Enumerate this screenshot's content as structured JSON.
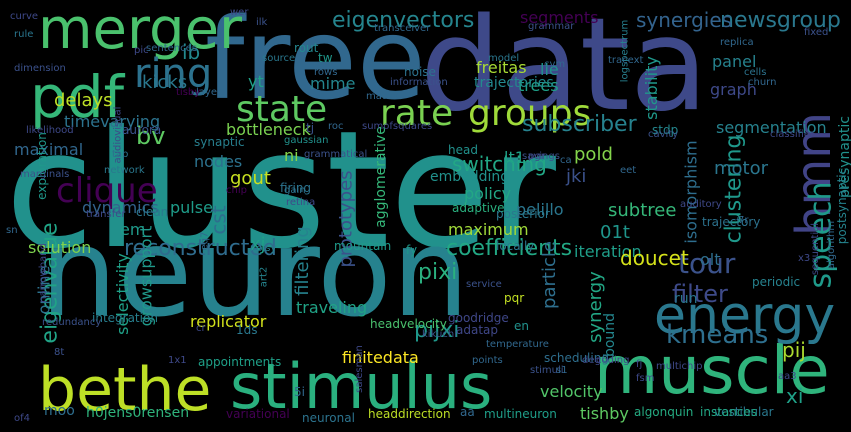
{
  "words": [
    {
      "text": "cluster",
      "color": "#21918c"
    },
    {
      "text": "neuron",
      "color": "#26828e"
    },
    {
      "text": "data",
      "color": "#3e4989"
    },
    {
      "text": "free",
      "color": "#31688e"
    },
    {
      "text": "stimulus",
      "color": "#2ab07f"
    },
    {
      "text": "bethe",
      "color": "#bddf26"
    },
    {
      "text": "muscle",
      "color": "#2fb47c"
    },
    {
      "text": "pdf",
      "color": "#35b779"
    },
    {
      "text": "merger",
      "color": "#4ac16d"
    },
    {
      "text": "energy",
      "color": "#2a788e"
    },
    {
      "text": "hmm",
      "color": "#414487"
    },
    {
      "text": "ring",
      "color": "#2c728e"
    },
    {
      "text": "state",
      "color": "#5ec962"
    },
    {
      "text": "rate",
      "color": "#7ad151"
    },
    {
      "text": "groups",
      "color": "#9fda3a"
    },
    {
      "text": "clique",
      "color": "#440154"
    },
    {
      "text": "speech",
      "color": "#1f9a8a"
    },
    {
      "text": "eigenvectors",
      "color": "#25858e"
    },
    {
      "text": "newsgroup",
      "color": "#2a788e"
    },
    {
      "text": "synergies",
      "color": "#33638d"
    },
    {
      "text": "subscriber",
      "color": "#26828e"
    },
    {
      "text": "clustering",
      "color": "#1f988b"
    },
    {
      "text": "tour",
      "color": "#3b528b"
    },
    {
      "text": "kmeans",
      "color": "#2e6f8e"
    },
    {
      "text": "filter",
      "color": "#3e4a89"
    },
    {
      "text": "eigenvalue",
      "color": "#20a386"
    },
    {
      "text": "reconstructed",
      "color": "#2f6c8e"
    },
    {
      "text": "switching",
      "color": "#22a785"
    },
    {
      "text": "coefficients",
      "color": "#22a884"
    },
    {
      "text": "segments",
      "color": "#440154"
    },
    {
      "text": "ib",
      "color": "#23898e"
    },
    {
      "text": "freitas",
      "color": "#a8db34"
    },
    {
      "text": "delays",
      "color": "#bddf26"
    },
    {
      "text": "kicks",
      "color": "#2a788e"
    },
    {
      "text": "yt",
      "color": "#1fa188"
    },
    {
      "text": "mime",
      "color": "#24868e"
    },
    {
      "text": "timevarying",
      "color": "#2c738e"
    },
    {
      "text": "maximal",
      "color": "#31678e"
    },
    {
      "text": "bv",
      "color": "#5ec962"
    },
    {
      "text": "bottleneck",
      "color": "#7ad151"
    },
    {
      "text": "ni",
      "color": "#86d549"
    },
    {
      "text": "nodes",
      "color": "#2c728e"
    },
    {
      "text": "gout",
      "color": "#c8e020"
    },
    {
      "text": "cst",
      "color": "#2e6e8e"
    },
    {
      "text": "lt1",
      "color": "#1fa187"
    },
    {
      "text": "pold",
      "color": "#84d44b"
    },
    {
      "text": "jki",
      "color": "#3b518b"
    },
    {
      "text": "motor",
      "color": "#2a768e"
    },
    {
      "text": "segmentation",
      "color": "#26828e"
    },
    {
      "text": "graph",
      "color": "#3e4989"
    },
    {
      "text": "stability",
      "color": "#1f988b"
    },
    {
      "text": "trees",
      "color": "#1fa088"
    },
    {
      "text": "lle",
      "color": "#21918c"
    },
    {
      "text": "trajectories",
      "color": "#23898e"
    },
    {
      "text": "dynamics",
      "color": "#33638d"
    },
    {
      "text": "pulse",
      "color": "#1e9c89"
    },
    {
      "text": "solution",
      "color": "#7fd34e"
    },
    {
      "text": "em",
      "color": "#1f9a8a"
    },
    {
      "text": "xj",
      "color": "#1fa188"
    },
    {
      "text": "maximum",
      "color": "#a0da39"
    },
    {
      "text": "pelillo",
      "color": "#2a768e"
    },
    {
      "text": "policy",
      "color": "#22a785"
    },
    {
      "text": "subtree",
      "color": "#35b779"
    },
    {
      "text": "isomorphism",
      "color": "#2e6e8e"
    },
    {
      "text": "01t",
      "color": "#1f958b"
    },
    {
      "text": "iteration",
      "color": "#1f9e89"
    },
    {
      "text": "prototypes",
      "color": "#3b528b"
    },
    {
      "text": "filtering",
      "color": "#26828e"
    },
    {
      "text": "pixi",
      "color": "#2ab07f"
    },
    {
      "text": "pijxi",
      "color": "#1f988b"
    },
    {
      "text": "particle",
      "color": "#2e6f8e"
    },
    {
      "text": "doucet",
      "color": "#d5e21a"
    },
    {
      "text": "olt",
      "color": "#2e6e8e"
    },
    {
      "text": "synergy",
      "color": "#22a785"
    },
    {
      "text": "replicator",
      "color": "#d2e21b"
    },
    {
      "text": "growsupport",
      "color": "#1f998a"
    },
    {
      "text": "selectivity",
      "color": "#1fa188"
    },
    {
      "text": "online",
      "color": "#2c728e"
    },
    {
      "text": "pij",
      "color": "#addc30"
    },
    {
      "text": "xi",
      "color": "#1fa188"
    },
    {
      "text": "velocity",
      "color": "#52c569"
    },
    {
      "text": "tishby",
      "color": "#5ec962"
    },
    {
      "text": "moo",
      "color": "#2e6e8e"
    },
    {
      "text": "h0jens0rensen",
      "color": "#2fb47c"
    },
    {
      "text": "finitedata",
      "color": "#fde725"
    },
    {
      "text": "appointments",
      "color": "#1fa088"
    },
    {
      "text": "run",
      "color": "#2a768e"
    },
    {
      "text": "bound",
      "color": "#24868e"
    },
    {
      "text": "traveling",
      "color": "#20a386"
    },
    {
      "text": "integration",
      "color": "#277f8e"
    },
    {
      "text": "scheduling",
      "color": "#2e6e8e"
    },
    {
      "text": "headdirection",
      "color": "#bddf26"
    },
    {
      "text": "neuronal",
      "color": "#2c738e"
    },
    {
      "text": "multineuron",
      "color": "#1f9e89"
    },
    {
      "text": "algonquin",
      "color": "#25ab82"
    },
    {
      "text": "vestibular",
      "color": "#2a788e"
    },
    {
      "text": "instances",
      "color": "#22a785"
    },
    {
      "text": "1ds",
      "color": "#2a788e"
    },
    {
      "text": "pqr",
      "color": "#c2df23"
    },
    {
      "text": "en",
      "color": "#21918c"
    },
    {
      "text": "goodridge",
      "color": "#3f4788"
    },
    {
      "text": "adatap",
      "color": "#3f4788"
    },
    {
      "text": "headvelocity",
      "color": "#4ac16d"
    },
    {
      "text": "mountain",
      "color": "#1f9a8a"
    },
    {
      "text": "fy",
      "color": "#1f998a"
    },
    {
      "text": "exploration",
      "color": "#1f988b"
    },
    {
      "text": "aurora",
      "color": "#3b528b"
    },
    {
      "text": "tj",
      "color": "#3b528b"
    },
    {
      "text": "roc",
      "color": "#31678e"
    },
    {
      "text": "agglomerative",
      "color": "#35b779"
    },
    {
      "text": "embedding",
      "color": "#21918c"
    },
    {
      "text": "head",
      "color": "#21918c"
    },
    {
      "text": "adaptive",
      "color": "#2ab07f"
    },
    {
      "text": "stdp",
      "color": "#24878e"
    },
    {
      "text": "synaptic",
      "color": "#277f8e"
    },
    {
      "text": "gaussian",
      "color": "#21918c"
    },
    {
      "text": "firing",
      "color": "#2c738e"
    },
    {
      "text": "gain",
      "color": "#2c738e"
    },
    {
      "text": "art2",
      "color": "#25848e"
    },
    {
      "text": "noisy",
      "color": "#26828e"
    },
    {
      "text": "clean",
      "color": "#2a788e"
    },
    {
      "text": "locally",
      "color": "#2a768e"
    },
    {
      "text": "posterior",
      "color": "#2a788e"
    },
    {
      "text": "trajectory",
      "color": "#2c728e"
    },
    {
      "text": "periodic",
      "color": "#26828e"
    },
    {
      "text": "presynaptic",
      "color": "#21918c"
    },
    {
      "text": "postsynaptic",
      "color": "#25848e"
    },
    {
      "text": "panel",
      "color": "#26828e"
    },
    {
      "text": "rout",
      "color": "#24878e"
    },
    {
      "text": "tw",
      "color": "#1f988b"
    },
    {
      "text": "noise",
      "color": "#2c728e"
    },
    {
      "text": "model",
      "color": "#2a778e"
    },
    {
      "text": "source",
      "color": "#2a788e"
    },
    {
      "text": "layer",
      "color": "#31688e"
    },
    {
      "text": "rows",
      "color": "#31678e"
    },
    {
      "text": "matrix",
      "color": "#31688e"
    },
    {
      "text": "sumofsquares",
      "color": "#3e4989"
    },
    {
      "text": "information",
      "color": "#3b528b"
    },
    {
      "text": "logspectrum",
      "color": "#277f8e"
    },
    {
      "text": "cvm",
      "color": "#31688e"
    },
    {
      "text": "tracext",
      "color": "#31678e"
    },
    {
      "text": "replica",
      "color": "#31688e"
    },
    {
      "text": "cells",
      "color": "#2c738e"
    },
    {
      "text": "churn",
      "color": "#31678e"
    },
    {
      "text": "fixed",
      "color": "#3b518b"
    },
    {
      "text": "curve",
      "color": "#3e4989"
    },
    {
      "text": "rule",
      "color": "#2a768e"
    },
    {
      "text": "pic",
      "color": "#3e4989"
    },
    {
      "text": "sentences",
      "color": "#31688e"
    },
    {
      "text": "dimension",
      "color": "#3b518b"
    },
    {
      "text": "likelihood",
      "color": "#3e4989"
    },
    {
      "text": "transceiver",
      "color": "#31688e"
    },
    {
      "text": "grammar",
      "color": "#3b528b"
    },
    {
      "text": "wer",
      "color": "#3e4989"
    },
    {
      "text": "ilk",
      "color": "#3b528b"
    },
    {
      "text": "tisby",
      "color": "#440154"
    },
    {
      "text": "audiovisual",
      "color": "#3e4989"
    },
    {
      "text": "tap",
      "color": "#2c728e"
    },
    {
      "text": "network",
      "color": "#2a788e"
    },
    {
      "text": "marginals",
      "color": "#3b528b"
    },
    {
      "text": "chip",
      "color": "#440154"
    },
    {
      "text": "transfer",
      "color": "#3e4989"
    },
    {
      "text": "retina",
      "color": "#3e4989"
    },
    {
      "text": "savings",
      "color": "#3b528b"
    },
    {
      "text": "ca",
      "color": "#31678e"
    },
    {
      "text": "eet",
      "color": "#31688e"
    },
    {
      "text": "auditory",
      "color": "#3e4989"
    },
    {
      "text": "cavity",
      "color": "#3b528b"
    },
    {
      "text": "classifier",
      "color": "#3e4989"
    },
    {
      "text": "grammatical",
      "color": "#3b528b"
    },
    {
      "text": "pgr",
      "color": "#3e4989"
    },
    {
      "text": "algorithm",
      "color": "#31688e"
    },
    {
      "text": "sequential",
      "color": "#3e4989"
    },
    {
      "text": "7r",
      "color": "#31688e"
    },
    {
      "text": "x3",
      "color": "#3e4989"
    },
    {
      "text": "sn",
      "color": "#31688e"
    },
    {
      "text": "narrowband",
      "color": "#3e4989"
    },
    {
      "text": "redundancy",
      "color": "#3b528b"
    },
    {
      "text": "eq7",
      "color": "#31688e"
    },
    {
      "text": "cr",
      "color": "#3e4989"
    },
    {
      "text": "8t",
      "color": "#3b518b"
    },
    {
      "text": "1x1",
      "color": "#3e4989"
    },
    {
      "text": "service",
      "color": "#3b528b"
    },
    {
      "text": "temperature",
      "color": "#31688e"
    },
    {
      "text": "kikuchi",
      "color": "#3b528b"
    },
    {
      "text": "points",
      "color": "#31688e"
    },
    {
      "text": "stimuli",
      "color": "#3b528b"
    },
    {
      "text": "deg",
      "color": "#3e4989"
    },
    {
      "text": "coding",
      "color": "#3e4989"
    },
    {
      "text": "s1",
      "color": "#31688e"
    },
    {
      "text": "fj",
      "color": "#3e4989"
    },
    {
      "text": "multichip",
      "color": "#3e4989"
    },
    {
      "text": "fsm",
      "color": "#3e4989"
    },
    {
      "text": "aa3",
      "color": "#3e4989"
    },
    {
      "text": "5i",
      "color": "#31688e"
    },
    {
      "text": "salesman",
      "color": "#3e4989"
    },
    {
      "text": "variational",
      "color": "#440154"
    },
    {
      "text": "of4",
      "color": "#3e4989"
    },
    {
      "text": "aa",
      "color": "#31688e"
    }
  ]
}
